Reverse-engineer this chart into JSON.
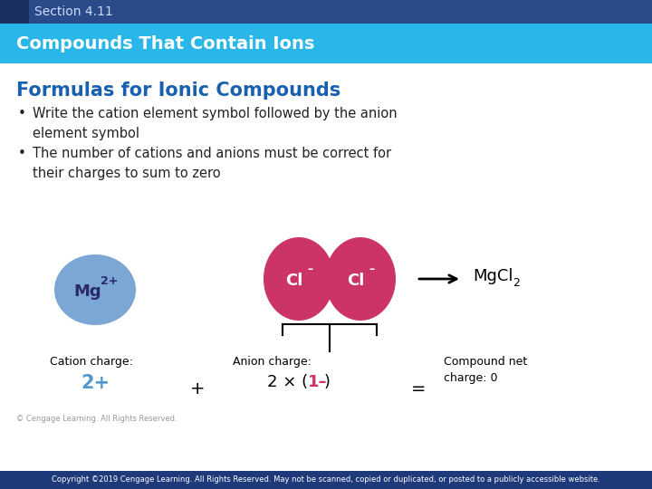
{
  "section_label": "Section 4.11",
  "header_title": "Compounds That Contain Ions",
  "slide_title": "Formulas for Ionic Compounds",
  "bullet1": "Write the cation element symbol followed by the anion\nelement symbol",
  "bullet2": "The number of cations and anions must be correct for\ntheir charges to sum to zero",
  "header_bg": "#29b6e8",
  "section_bar_color": "#2b4a8a",
  "section_bar_dark": "#1a2f5e",
  "title_color": "#1a60b0",
  "header_text_color": "#ffffff",
  "section_text_color": "#ccddff",
  "body_bg": "#ffffff",
  "bullet_text_color": "#222222",
  "footer_bg": "#1e3a7a",
  "footer_text": "Copyright ©2019 Cengage Learning. All Rights Reserved. May not be scanned, copied or duplicated, or posted to a publicly accessible website.",
  "footer_text_color": "#ffffff",
  "cation_charge_label": "Cation charge:",
  "cation_charge_val": "2+",
  "anion_charge_label": "Anion charge:",
  "anion_charge_val": "2 × (1–)",
  "compound_charge_label": "Compound net\ncharge: 0",
  "copyright_small": "© Cengage Learning. All Rights Reserved.",
  "blue_ellipse_color": "#7ba7d4",
  "pink_ellipse_color": "#cc3366",
  "mg_text_color": "#2a2a6a",
  "cl_text_color": "#ffffff",
  "charge_val_color": "#5599cc",
  "anion_val_color_prefix": "2 × (",
  "anion_val_color_suffix": "1–",
  "anion_val_color_end": ")"
}
